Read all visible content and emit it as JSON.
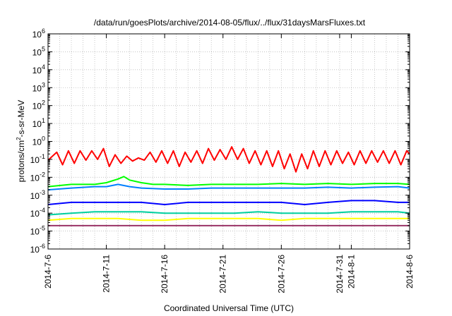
{
  "chart_data": {
    "type": "line",
    "title": "/data/run/goesPlots/archive/2014-08-05/flux/../flux/31daysMarsFluxes.txt",
    "xlabel": "Coordinated Universal Time (UTC)",
    "ylabel": "protons/cm²-s-sr-MeV",
    "ylabel_parts": {
      "before": "protons/cm",
      "sup": "2",
      "after": "-s-sr-MeV"
    },
    "yscale": "log",
    "ylim": [
      1e-06,
      1000000.0
    ],
    "xlim": [
      "2014-07-06",
      "2014-08-06"
    ],
    "grid": true,
    "x_ticks": [
      {
        "label": "2014-7-6",
        "day": 0
      },
      {
        "label": "2014-7-11",
        "day": 5
      },
      {
        "label": "2014-7-16",
        "day": 10
      },
      {
        "label": "2014-7-21",
        "day": 15
      },
      {
        "label": "2014-7-26",
        "day": 20
      },
      {
        "label": "2014-7-31",
        "day": 25
      },
      {
        "label": "2014-8-1",
        "day": 26
      },
      {
        "label": "2014-8-6",
        "day": 31
      }
    ],
    "y_ticks": [
      {
        "base": "10",
        "exp": "6",
        "value": 6
      },
      {
        "base": "10",
        "exp": "5",
        "value": 5
      },
      {
        "base": "10",
        "exp": "4",
        "value": 4
      },
      {
        "base": "10",
        "exp": "3",
        "value": 3
      },
      {
        "base": "10",
        "exp": "2",
        "value": 2
      },
      {
        "base": "10",
        "exp": "1",
        "value": 1
      },
      {
        "base": "10",
        "exp": "0",
        "value": 0
      },
      {
        "base": "10",
        "exp": "-1",
        "value": -1
      },
      {
        "base": "10",
        "exp": "-2",
        "value": -2
      },
      {
        "base": "10",
        "exp": "-3",
        "value": -3
      },
      {
        "base": "10",
        "exp": "-4",
        "value": -4
      },
      {
        "base": "10",
        "exp": "-5",
        "value": -5
      },
      {
        "base": "10",
        "exp": "-6",
        "value": -6
      }
    ],
    "series": [
      {
        "color": "#ff0000",
        "values": [
          [
            "2014-07-06",
            0.09
          ],
          [
            "2014-07-06 18:00",
            0.25
          ],
          [
            "2014-07-07 06:00",
            0.05
          ],
          [
            "2014-07-07 18:00",
            0.3
          ],
          [
            "2014-07-08 06:00",
            0.06
          ],
          [
            "2014-07-08 18:00",
            0.3
          ],
          [
            "2014-07-09 06:00",
            0.09
          ],
          [
            "2014-07-09 18:00",
            0.3
          ],
          [
            "2014-07-10 06:00",
            0.1
          ],
          [
            "2014-07-10 18:00",
            0.4
          ],
          [
            "2014-07-11 06:00",
            0.04
          ],
          [
            "2014-07-11 18:00",
            0.18
          ],
          [
            "2014-07-12 06:00",
            0.06
          ],
          [
            "2014-07-12 18:00",
            0.15
          ],
          [
            "2014-07-13 06:00",
            0.08
          ],
          [
            "2014-07-13 18:00",
            0.12
          ],
          [
            "2014-07-14 06:00",
            0.09
          ],
          [
            "2014-07-14 18:00",
            0.25
          ],
          [
            "2014-07-15 06:00",
            0.07
          ],
          [
            "2014-07-15 18:00",
            0.3
          ],
          [
            "2014-07-16 06:00",
            0.06
          ],
          [
            "2014-07-16 18:00",
            0.3
          ],
          [
            "2014-07-17 06:00",
            0.04
          ],
          [
            "2014-07-17 18:00",
            0.25
          ],
          [
            "2014-07-18 06:00",
            0.07
          ],
          [
            "2014-07-18 18:00",
            0.3
          ],
          [
            "2014-07-19 06:00",
            0.06
          ],
          [
            "2014-07-19 18:00",
            0.4
          ],
          [
            "2014-07-20 06:00",
            0.09
          ],
          [
            "2014-07-20 18:00",
            0.35
          ],
          [
            "2014-07-21 06:00",
            0.1
          ],
          [
            "2014-07-21 18:00",
            0.5
          ],
          [
            "2014-07-22 06:00",
            0.1
          ],
          [
            "2014-07-22 18:00",
            0.4
          ],
          [
            "2014-07-23 06:00",
            0.06
          ],
          [
            "2014-07-23 18:00",
            0.3
          ],
          [
            "2014-07-24 06:00",
            0.05
          ],
          [
            "2014-07-24 18:00",
            0.3
          ],
          [
            "2014-07-25 06:00",
            0.04
          ],
          [
            "2014-07-25 18:00",
            0.3
          ],
          [
            "2014-07-26 06:00",
            0.03
          ],
          [
            "2014-07-26 18:00",
            0.2
          ],
          [
            "2014-07-27 06:00",
            0.02
          ],
          [
            "2014-07-27 18:00",
            0.2
          ],
          [
            "2014-07-28 06:00",
            0.03
          ],
          [
            "2014-07-28 18:00",
            0.3
          ],
          [
            "2014-07-29 06:00",
            0.04
          ],
          [
            "2014-07-29 18:00",
            0.3
          ],
          [
            "2014-07-30 06:00",
            0.05
          ],
          [
            "2014-07-30 18:00",
            0.3
          ],
          [
            "2014-07-31 06:00",
            0.06
          ],
          [
            "2014-07-31 18:00",
            0.25
          ],
          [
            "2014-08-01 06:00",
            0.05
          ],
          [
            "2014-08-01 18:00",
            0.3
          ],
          [
            "2014-08-02 06:00",
            0.06
          ],
          [
            "2014-08-02 18:00",
            0.3
          ],
          [
            "2014-08-03 06:00",
            0.07
          ],
          [
            "2014-08-03 18:00",
            0.3
          ],
          [
            "2014-08-04 06:00",
            0.06
          ],
          [
            "2014-08-04 18:00",
            0.3
          ],
          [
            "2014-08-05 06:00",
            0.05
          ],
          [
            "2014-08-05 18:00",
            0.3
          ],
          [
            "2014-08-06",
            0.2
          ]
        ]
      },
      {
        "color": "#00ff00",
        "values": [
          [
            "2014-07-06",
            0.003
          ],
          [
            "2014-07-08",
            0.004
          ],
          [
            "2014-07-10",
            0.004
          ],
          [
            "2014-07-11",
            0.005
          ],
          [
            "2014-07-12",
            0.008
          ],
          [
            "2014-07-12 12:00",
            0.011
          ],
          [
            "2014-07-13",
            0.007
          ],
          [
            "2014-07-14",
            0.005
          ],
          [
            "2014-07-15",
            0.004
          ],
          [
            "2014-07-16",
            0.004
          ],
          [
            "2014-07-18",
            0.0035
          ],
          [
            "2014-07-20",
            0.004
          ],
          [
            "2014-07-22",
            0.004
          ],
          [
            "2014-07-24",
            0.004
          ],
          [
            "2014-07-26",
            0.0045
          ],
          [
            "2014-07-28",
            0.004
          ],
          [
            "2014-07-30",
            0.0045
          ],
          [
            "2014-08-01",
            0.004
          ],
          [
            "2014-08-03",
            0.0045
          ],
          [
            "2014-08-05",
            0.0045
          ],
          [
            "2014-08-06",
            0.004
          ]
        ]
      },
      {
        "color": "#0080ff",
        "values": [
          [
            "2014-07-06",
            0.002
          ],
          [
            "2014-07-08",
            0.0025
          ],
          [
            "2014-07-10",
            0.003
          ],
          [
            "2014-07-11",
            0.003
          ],
          [
            "2014-07-12",
            0.004
          ],
          [
            "2014-07-13",
            0.003
          ],
          [
            "2014-07-14",
            0.0025
          ],
          [
            "2014-07-16",
            0.0022
          ],
          [
            "2014-07-18",
            0.0022
          ],
          [
            "2014-07-20",
            0.0025
          ],
          [
            "2014-07-22",
            0.0025
          ],
          [
            "2014-07-24",
            0.0025
          ],
          [
            "2014-07-26",
            0.0025
          ],
          [
            "2014-07-28",
            0.0025
          ],
          [
            "2014-07-30",
            0.0028
          ],
          [
            "2014-08-01",
            0.0025
          ],
          [
            "2014-08-03",
            0.0028
          ],
          [
            "2014-08-05",
            0.003
          ],
          [
            "2014-08-06",
            0.0025
          ]
        ]
      },
      {
        "color": "#0000ff",
        "values": [
          [
            "2014-07-06",
            0.0003
          ],
          [
            "2014-07-08",
            0.0004
          ],
          [
            "2014-07-10",
            0.0004
          ],
          [
            "2014-07-12",
            0.0004
          ],
          [
            "2014-07-14",
            0.0004
          ],
          [
            "2014-07-16",
            0.0003
          ],
          [
            "2014-07-18",
            0.0004
          ],
          [
            "2014-07-20",
            0.0004
          ],
          [
            "2014-07-22",
            0.0004
          ],
          [
            "2014-07-24",
            0.0004
          ],
          [
            "2014-07-26",
            0.0004
          ],
          [
            "2014-07-28",
            0.0003
          ],
          [
            "2014-07-30",
            0.0004
          ],
          [
            "2014-08-01",
            0.0005
          ],
          [
            "2014-08-03",
            0.0005
          ],
          [
            "2014-08-05",
            0.0004
          ],
          [
            "2014-08-06",
            0.0004
          ]
        ]
      },
      {
        "color": "#00d0a0",
        "values": [
          [
            "2014-07-06",
            8e-05
          ],
          [
            "2014-07-08",
            0.0001
          ],
          [
            "2014-07-10",
            0.00012
          ],
          [
            "2014-07-12",
            0.00012
          ],
          [
            "2014-07-14",
            0.00012
          ],
          [
            "2014-07-16",
            0.0001
          ],
          [
            "2014-07-18",
            0.0001
          ],
          [
            "2014-07-20",
            0.0001
          ],
          [
            "2014-07-22",
            0.0001
          ],
          [
            "2014-07-24",
            0.00012
          ],
          [
            "2014-07-26",
            0.0001
          ],
          [
            "2014-07-28",
            0.0001
          ],
          [
            "2014-07-30",
            0.0001
          ],
          [
            "2014-08-01",
            0.00012
          ],
          [
            "2014-08-03",
            0.00012
          ],
          [
            "2014-08-05",
            0.00012
          ],
          [
            "2014-08-06",
            0.0001
          ]
        ]
      },
      {
        "color": "#ffff00",
        "values": [
          [
            "2014-07-06",
            4e-05
          ],
          [
            "2014-07-08",
            5e-05
          ],
          [
            "2014-07-10",
            5e-05
          ],
          [
            "2014-07-12",
            5e-05
          ],
          [
            "2014-07-14",
            4e-05
          ],
          [
            "2014-07-16",
            4e-05
          ],
          [
            "2014-07-18",
            5e-05
          ],
          [
            "2014-07-20",
            5e-05
          ],
          [
            "2014-07-22",
            5e-05
          ],
          [
            "2014-07-24",
            5e-05
          ],
          [
            "2014-07-26",
            4e-05
          ],
          [
            "2014-07-28",
            5e-05
          ],
          [
            "2014-07-30",
            5e-05
          ],
          [
            "2014-08-01",
            5e-05
          ],
          [
            "2014-08-03",
            5e-05
          ],
          [
            "2014-08-05",
            5e-05
          ],
          [
            "2014-08-06",
            5e-05
          ]
        ]
      },
      {
        "color": "#993366",
        "values": [
          [
            "2014-07-06",
            2e-05
          ],
          [
            "2014-07-08",
            2e-05
          ],
          [
            "2014-07-10",
            2e-05
          ],
          [
            "2014-07-12",
            2e-05
          ],
          [
            "2014-07-14",
            2e-05
          ],
          [
            "2014-07-16",
            2e-05
          ],
          [
            "2014-07-18",
            2e-05
          ],
          [
            "2014-07-20",
            2e-05
          ],
          [
            "2014-07-22",
            2e-05
          ],
          [
            "2014-07-24",
            2e-05
          ],
          [
            "2014-07-26",
            2e-05
          ],
          [
            "2014-07-28",
            2e-05
          ],
          [
            "2014-07-30",
            2e-05
          ],
          [
            "2014-08-01",
            2e-05
          ],
          [
            "2014-08-03",
            2e-05
          ],
          [
            "2014-08-05",
            2e-05
          ],
          [
            "2014-08-06",
            2e-05
          ]
        ]
      }
    ]
  }
}
